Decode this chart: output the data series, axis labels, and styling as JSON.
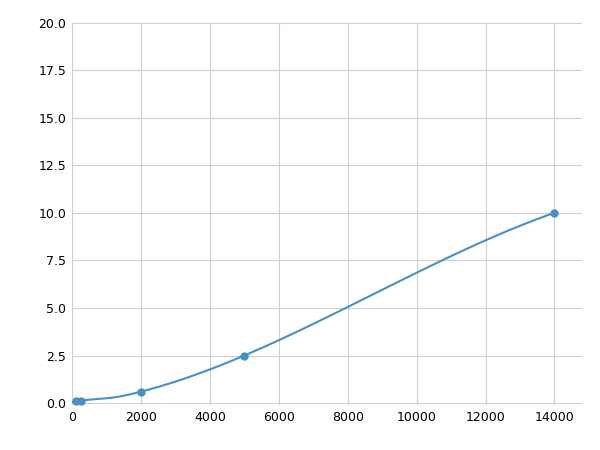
{
  "x": [
    0,
    125,
    250,
    500,
    1000,
    2000,
    5000,
    14000
  ],
  "y": [
    0.05,
    0.1,
    0.13,
    0.18,
    0.25,
    0.6,
    2.5,
    10.0
  ],
  "line_color": "#4a90c4",
  "marker_color": "#4a90c4",
  "marker_size": 5,
  "xlim": [
    0,
    14800
  ],
  "ylim": [
    -0.1,
    20.0
  ],
  "xticks": [
    0,
    2000,
    4000,
    6000,
    8000,
    10000,
    12000,
    14000
  ],
  "yticks": [
    0.0,
    2.5,
    5.0,
    7.5,
    10.0,
    12.5,
    15.0,
    17.5,
    20.0
  ],
  "grid_color": "#d0d0d0",
  "background_color": "#ffffff",
  "marker_points": [
    125,
    250,
    2000,
    5000,
    14000
  ],
  "figsize": [
    6.0,
    4.5
  ],
  "dpi": 100
}
